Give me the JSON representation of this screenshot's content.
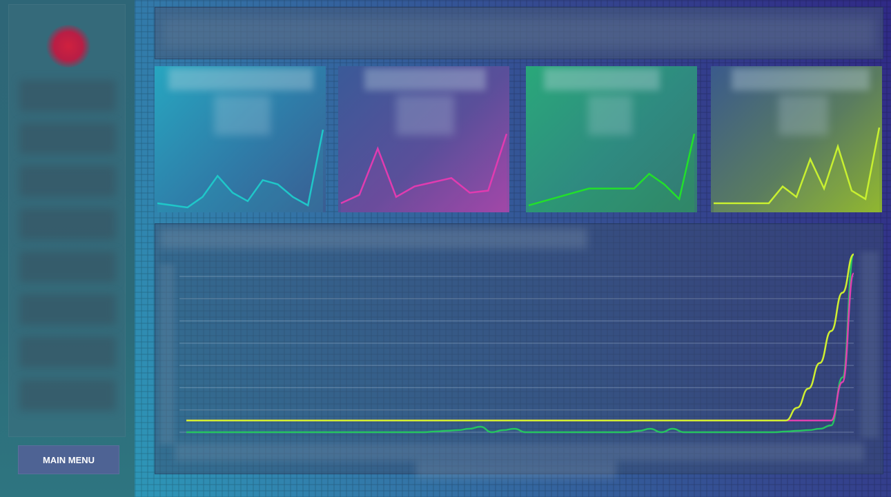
{
  "sidebar": {
    "main_menu_label": "MAIN MENU",
    "logo_icon": "red-dot-logo",
    "item_count": 8
  },
  "colors": {
    "cyan": "#1fc7c9",
    "magenta": "#e13bb0",
    "green": "#22e02a",
    "lime": "#c8f030",
    "series_green": "#26c460",
    "series_magenta": "#e040b0",
    "series_lime": "#d0f030"
  },
  "cards": [
    {
      "theme": "cyan",
      "spark": [
        3,
        2,
        1,
        6,
        16,
        8,
        4,
        14,
        12,
        6,
        2,
        38
      ]
    },
    {
      "theme": "magenta",
      "spark": [
        3,
        7,
        29,
        6,
        11,
        13,
        15,
        8,
        9,
        36
      ]
    },
    {
      "theme": "green",
      "spark": [
        2,
        4,
        6,
        8,
        10,
        10,
        10,
        10,
        17,
        12,
        5,
        36
      ]
    },
    {
      "theme": "lime",
      "spark": [
        3,
        3,
        3,
        3,
        3,
        11,
        6,
        24,
        10,
        30,
        9,
        5,
        39
      ]
    }
  ],
  "chart_data": {
    "type": "line",
    "grid": true,
    "series": [
      {
        "color": "green",
        "values": [
          0,
          0,
          0,
          0,
          0,
          0,
          0,
          0,
          0,
          0,
          0,
          0,
          0,
          0,
          0,
          0,
          0,
          0,
          0,
          0,
          0,
          0,
          1,
          2,
          3,
          5,
          8,
          0,
          3,
          5,
          0,
          0,
          0,
          0,
          0,
          0,
          0,
          0,
          0,
          0,
          2,
          5,
          0,
          5,
          0,
          0,
          0,
          0,
          0,
          0,
          0,
          0,
          0,
          1,
          2,
          3,
          5,
          10,
          80,
          260
        ]
      },
      {
        "color": "magenta",
        "values": [
          0,
          0,
          0,
          0,
          0,
          0,
          0,
          0,
          0,
          0,
          0,
          0,
          0,
          0,
          0,
          0,
          0,
          0,
          0,
          0,
          0,
          0,
          0,
          0,
          0,
          0,
          0,
          0,
          0,
          0,
          0,
          0,
          0,
          0,
          0,
          0,
          0,
          0,
          0,
          0,
          0,
          0,
          0,
          0,
          0,
          0,
          0,
          0,
          0,
          0,
          0,
          0,
          0,
          0,
          0,
          0,
          0,
          0,
          60,
          230
        ]
      },
      {
        "color": "lime",
        "values": [
          0,
          0,
          0,
          0,
          0,
          0,
          0,
          0,
          0,
          0,
          0,
          0,
          0,
          0,
          0,
          0,
          0,
          0,
          0,
          0,
          0,
          0,
          0,
          0,
          0,
          0,
          0,
          0,
          0,
          0,
          0,
          0,
          0,
          0,
          0,
          0,
          0,
          0,
          0,
          0,
          0,
          0,
          0,
          0,
          0,
          0,
          0,
          0,
          0,
          0,
          0,
          0,
          0,
          0,
          20,
          50,
          90,
          140,
          200,
          260
        ]
      }
    ],
    "ylim": [
      0,
      260
    ]
  }
}
